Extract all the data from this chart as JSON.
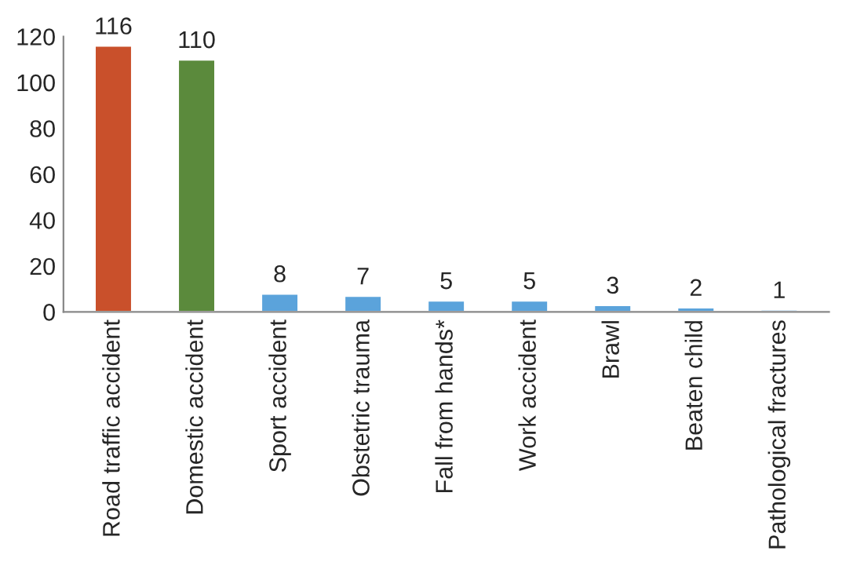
{
  "chart_data": {
    "type": "bar",
    "categories": [
      "Road traffic accident",
      "Domestic accident",
      "Sport accident",
      "Obstetric trauma",
      "Fall from hands*",
      "Work accident",
      "Brawl",
      "Beaten child",
      "Pathological fractures"
    ],
    "values": [
      116,
      110,
      8,
      7,
      5,
      5,
      3,
      2,
      1
    ],
    "colors": [
      "#c9502b",
      "#5b8a3c",
      "#5ba3db",
      "#5ba3db",
      "#5ba3db",
      "#5ba3db",
      "#5ba3db",
      "#5ba3db",
      "#5ba3db"
    ],
    "ylim": [
      0,
      120
    ],
    "yticks": [
      0,
      20,
      40,
      60,
      80,
      100,
      120
    ],
    "data_labels": true,
    "grid": false,
    "legend": false
  }
}
